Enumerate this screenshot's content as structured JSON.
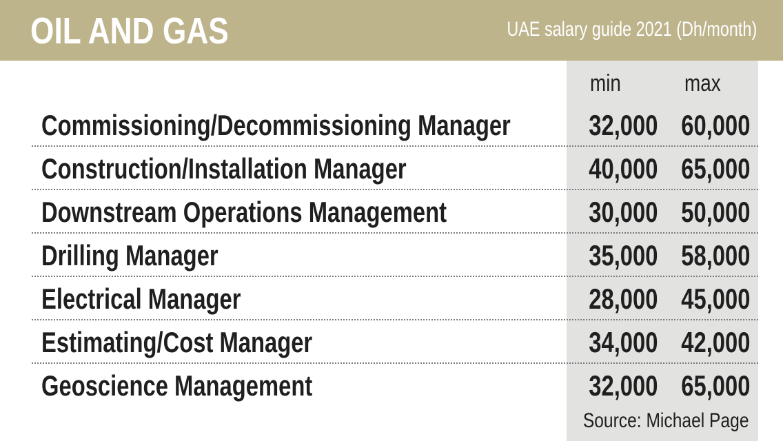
{
  "header": {
    "title": "OIL AND GAS",
    "subtitle": "UAE salary guide 2021 (Dh/month)"
  },
  "colors": {
    "header_band": "#bdb48b",
    "numbers_panel": "#e2e2e1",
    "text": "#1f1f1f"
  },
  "chart_data": {
    "type": "table",
    "title": "OIL AND GAS",
    "subtitle": "UAE salary guide 2021 (Dh/month)",
    "columns": [
      "min",
      "max"
    ],
    "rows": [
      {
        "label": "Commissioning/Decommissioning Manager",
        "min": "32,000",
        "max": "60,000"
      },
      {
        "label": "Construction/Installation Manager",
        "min": "40,000",
        "max": "65,000"
      },
      {
        "label": "Downstream Operations Management",
        "min": "30,000",
        "max": "50,000"
      },
      {
        "label": "Drilling Manager",
        "min": "35,000",
        "max": "58,000"
      },
      {
        "label": "Electrical Manager",
        "min": "28,000",
        "max": "45,000"
      },
      {
        "label": "Estimating/Cost Manager",
        "min": "34,000",
        "max": "42,000"
      },
      {
        "label": "Geoscience Management",
        "min": "32,000",
        "max": "65,000"
      }
    ],
    "source": "Source: Michael Page"
  }
}
